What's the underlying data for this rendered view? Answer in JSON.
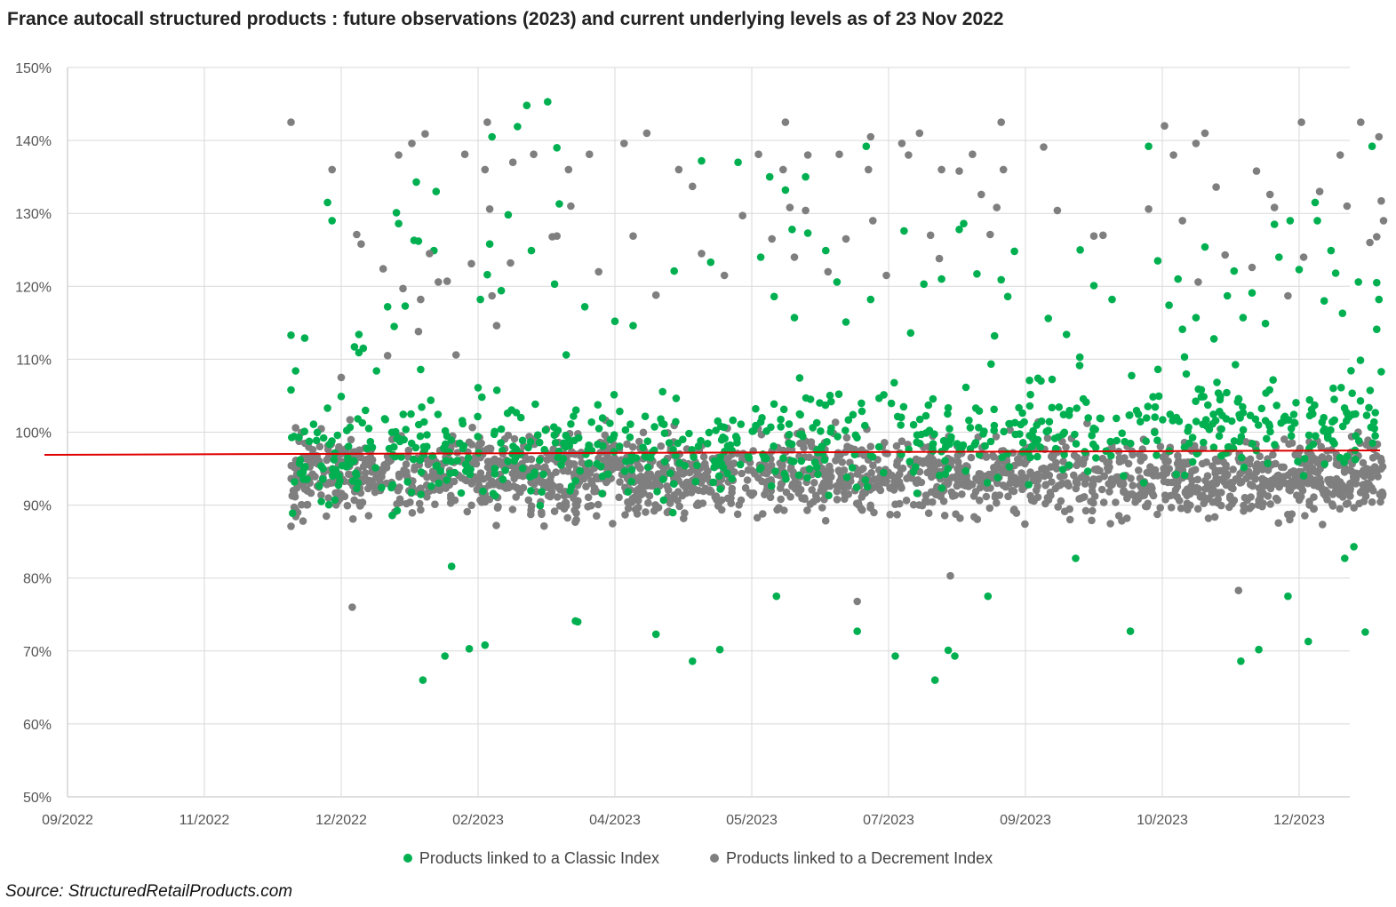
{
  "title": "France autocall structured products : future observations (2023) and current underlying levels as of 23 Nov 2022",
  "source": "Source: StructuredRetailProducts.com",
  "colors": {
    "classic": "#00B050",
    "decrement": "#7F7F7F",
    "reference_line": "#E00000",
    "grid": "#D9D9D9",
    "axis": "#BFBFBF"
  },
  "chart_data": {
    "type": "scatter",
    "x_axis": {
      "type": "date",
      "range": [
        "2022-09-01",
        "2023-12-31"
      ],
      "tick_labels": [
        "09/2022",
        "11/2022",
        "12/2022",
        "02/2023",
        "04/2023",
        "05/2023",
        "07/2023",
        "09/2023",
        "10/2023",
        "12/2023"
      ]
    },
    "y_axis": {
      "range": [
        50,
        150
      ],
      "unit": "%",
      "tick_labels": [
        "50%",
        "60%",
        "70%",
        "80%",
        "90%",
        "100%",
        "110%",
        "120%",
        "130%",
        "140%",
        "150%"
      ]
    },
    "grid": true,
    "legend_position": "bottom",
    "reference_line": {
      "y_start": 96.9,
      "y_end": 97.5
    },
    "series": [
      {
        "name": "Products linked to a Classic Index",
        "color": "#00B050",
        "points": [
          [
            "2022-11-20",
            113.3
          ],
          [
            "2022-11-21",
            108.4
          ],
          [
            "2022-11-23",
            112.9
          ],
          [
            "2022-11-20",
            105.8
          ],
          [
            "2022-11-22",
            96.2
          ],
          [
            "2022-11-28",
            131.5
          ],
          [
            "2022-11-29",
            129.0
          ],
          [
            "2022-12-01",
            104.9
          ],
          [
            "2022-11-28",
            103.3
          ],
          [
            "2022-11-27",
            95.0
          ],
          [
            "2022-12-07",
            111.7
          ],
          [
            "2022-12-09",
            113.4
          ],
          [
            "2022-12-09",
            110.9
          ],
          [
            "2022-12-11",
            111.5
          ],
          [
            "2022-12-12",
            103.0
          ],
          [
            "2022-12-17",
            108.4
          ],
          [
            "2022-12-22",
            117.2
          ],
          [
            "2022-12-26",
            130.1
          ],
          [
            "2022-12-27",
            128.6
          ],
          [
            "2022-12-25",
            114.5
          ],
          [
            "2022-12-30",
            117.3
          ],
          [
            "2023-01-03",
            126.3
          ],
          [
            "2023-01-05",
            126.2
          ],
          [
            "2023-01-04",
            134.3
          ],
          [
            "2023-01-13",
            133.0
          ],
          [
            "2023-01-12",
            124.9
          ],
          [
            "2023-01-06",
            108.6
          ],
          [
            "2023-01-07",
            66.0
          ],
          [
            "2023-01-17",
            69.3
          ],
          [
            "2023-01-20",
            81.6
          ],
          [
            "2023-01-28",
            70.3
          ],
          [
            "2023-02-01",
            106.1
          ],
          [
            "2023-02-02",
            118.2
          ],
          [
            "2023-02-05",
            121.6
          ],
          [
            "2023-02-04",
            70.8
          ],
          [
            "2023-02-06",
            125.8
          ],
          [
            "2023-02-07",
            140.5
          ],
          [
            "2023-02-11",
            119.4
          ],
          [
            "2023-02-14",
            129.8
          ],
          [
            "2023-02-18",
            141.9
          ],
          [
            "2023-02-22",
            144.8
          ],
          [
            "2023-02-24",
            124.9
          ],
          [
            "2023-03-03",
            145.3
          ],
          [
            "2023-03-07",
            139.0
          ],
          [
            "2023-03-06",
            120.3
          ],
          [
            "2023-03-08",
            131.3
          ],
          [
            "2023-03-11",
            110.6
          ],
          [
            "2023-03-15",
            74.1
          ],
          [
            "2023-03-16",
            74.0
          ],
          [
            "2023-03-19",
            117.2
          ],
          [
            "2023-04-01",
            115.2
          ],
          [
            "2023-04-05",
            114.6
          ],
          [
            "2023-04-10",
            72.3
          ],
          [
            "2023-04-14",
            122.1
          ],
          [
            "2023-04-18",
            68.6
          ],
          [
            "2023-04-20",
            137.2
          ],
          [
            "2023-04-24",
            70.2
          ],
          [
            "2023-04-22",
            123.3
          ],
          [
            "2023-04-28",
            137.0
          ],
          [
            "2023-05-05",
            124.0
          ],
          [
            "2023-05-09",
            135.0
          ],
          [
            "2023-05-11",
            118.6
          ],
          [
            "2023-05-12",
            77.5
          ],
          [
            "2023-05-16",
            133.2
          ],
          [
            "2023-05-19",
            127.8
          ],
          [
            "2023-05-20",
            115.7
          ],
          [
            "2023-05-25",
            135.0
          ],
          [
            "2023-05-26",
            127.3
          ],
          [
            "2023-06-03",
            124.9
          ],
          [
            "2023-06-08",
            120.6
          ],
          [
            "2023-06-12",
            115.1
          ],
          [
            "2023-06-17",
            72.7
          ],
          [
            "2023-06-21",
            139.2
          ],
          [
            "2023-06-23",
            118.2
          ],
          [
            "2023-07-04",
            69.3
          ],
          [
            "2023-07-08",
            127.6
          ],
          [
            "2023-07-11",
            113.6
          ],
          [
            "2023-07-17",
            120.3
          ],
          [
            "2023-07-22",
            66.0
          ],
          [
            "2023-07-25",
            121.0
          ],
          [
            "2023-07-28",
            70.1
          ],
          [
            "2023-07-31",
            69.3
          ],
          [
            "2023-08-02",
            127.8
          ],
          [
            "2023-08-04",
            128.6
          ],
          [
            "2023-08-10",
            121.7
          ],
          [
            "2023-08-15",
            77.5
          ],
          [
            "2023-08-18",
            113.2
          ],
          [
            "2023-08-21",
            120.9
          ],
          [
            "2023-08-24",
            118.6
          ],
          [
            "2023-08-27",
            124.8
          ],
          [
            "2023-09-06",
            115.6
          ],
          [
            "2023-09-10",
            113.4
          ],
          [
            "2023-09-12",
            82.7
          ],
          [
            "2023-09-13",
            125.0
          ],
          [
            "2023-09-16",
            120.1
          ],
          [
            "2023-09-20",
            118.2
          ],
          [
            "2023-09-24",
            72.7
          ],
          [
            "2023-09-28",
            139.2
          ],
          [
            "2023-09-30",
            123.5
          ],
          [
            "2023-10-04",
            117.4
          ],
          [
            "2023-10-08",
            121.0
          ],
          [
            "2023-10-10",
            114.1
          ],
          [
            "2023-10-16",
            115.7
          ],
          [
            "2023-10-20",
            125.4
          ],
          [
            "2023-10-24",
            112.8
          ],
          [
            "2023-10-30",
            118.7
          ],
          [
            "2023-11-02",
            122.1
          ],
          [
            "2023-11-06",
            115.7
          ],
          [
            "2023-11-05",
            68.6
          ],
          [
            "2023-11-10",
            119.1
          ],
          [
            "2023-11-13",
            70.2
          ],
          [
            "2023-11-16",
            114.9
          ],
          [
            "2023-11-20",
            128.5
          ],
          [
            "2023-11-22",
            124.0
          ],
          [
            "2023-11-26",
            77.5
          ],
          [
            "2023-11-27",
            129.0
          ],
          [
            "2023-12-01",
            122.3
          ],
          [
            "2023-12-05",
            71.3
          ],
          [
            "2023-12-08",
            131.5
          ],
          [
            "2023-12-09",
            129.0
          ],
          [
            "2023-12-12",
            118.0
          ],
          [
            "2023-12-15",
            124.9
          ],
          [
            "2023-12-17",
            121.8
          ],
          [
            "2023-12-20",
            116.3
          ],
          [
            "2023-12-21",
            82.7
          ],
          [
            "2023-12-25",
            84.3
          ],
          [
            "2023-12-27",
            120.6
          ],
          [
            "2023-12-30",
            72.6
          ],
          [
            "2024-01-02",
            139.2
          ],
          [
            "2024-01-04",
            120.5
          ],
          [
            "2024-01-05",
            118.2
          ],
          [
            "2024-01-04",
            114.1
          ],
          [
            "2024-01-06",
            108.3
          ],
          [
            "2024-01-03",
            100.5
          ]
        ],
        "note": "plus a dense band of green points between roughly 85% and 115% across the observation dates"
      },
      {
        "name": "Products linked to a Decrement Index",
        "color": "#7F7F7F",
        "points": [
          [
            "2022-11-20",
            142.5
          ],
          [
            "2022-11-21",
            100.6
          ],
          [
            "2022-11-23",
            92.2
          ],
          [
            "2022-11-20",
            87.1
          ],
          [
            "2022-11-29",
            136.0
          ],
          [
            "2022-12-01",
            107.5
          ],
          [
            "2022-12-06",
            76.0
          ],
          [
            "2022-12-08",
            127.1
          ],
          [
            "2022-12-10",
            125.8
          ],
          [
            "2022-12-05",
            101.7
          ],
          [
            "2022-12-20",
            122.4
          ],
          [
            "2022-12-22",
            110.5
          ],
          [
            "2022-12-27",
            138.0
          ],
          [
            "2022-12-29",
            119.7
          ],
          [
            "2023-01-02",
            139.6
          ],
          [
            "2023-01-08",
            140.9
          ],
          [
            "2023-01-05",
            113.8
          ],
          [
            "2023-01-06",
            118.2
          ],
          [
            "2023-01-10",
            124.5
          ],
          [
            "2023-01-14",
            120.6
          ],
          [
            "2023-01-18",
            120.7
          ],
          [
            "2023-01-22",
            110.6
          ],
          [
            "2023-01-26",
            138.1
          ],
          [
            "2023-01-29",
            123.1
          ],
          [
            "2023-02-04",
            136.0
          ],
          [
            "2023-02-05",
            142.5
          ],
          [
            "2023-02-06",
            130.6
          ],
          [
            "2023-02-07",
            118.7
          ],
          [
            "2023-02-09",
            114.6
          ],
          [
            "2023-02-16",
            137.0
          ],
          [
            "2023-02-15",
            123.2
          ],
          [
            "2023-02-25",
            138.1
          ],
          [
            "2023-03-05",
            126.8
          ],
          [
            "2023-03-07",
            126.9
          ],
          [
            "2023-03-12",
            136.0
          ],
          [
            "2023-03-13",
            131.0
          ],
          [
            "2023-03-21",
            138.1
          ],
          [
            "2023-03-25",
            122.0
          ],
          [
            "2023-04-03",
            139.6
          ],
          [
            "2023-04-08",
            141.0
          ],
          [
            "2023-04-05",
            126.9
          ],
          [
            "2023-04-10",
            118.8
          ],
          [
            "2023-04-15",
            136.0
          ],
          [
            "2023-04-18",
            133.7
          ],
          [
            "2023-04-20",
            124.5
          ],
          [
            "2023-04-25",
            121.5
          ],
          [
            "2023-04-29",
            129.7
          ],
          [
            "2023-05-04",
            138.1
          ],
          [
            "2023-05-10",
            126.5
          ],
          [
            "2023-05-15",
            136.0
          ],
          [
            "2023-05-16",
            142.5
          ],
          [
            "2023-05-18",
            130.8
          ],
          [
            "2023-05-20",
            124.0
          ],
          [
            "2023-05-25",
            130.4
          ],
          [
            "2023-05-26",
            138.0
          ],
          [
            "2023-06-04",
            122.0
          ],
          [
            "2023-06-09",
            138.1
          ],
          [
            "2023-06-12",
            126.5
          ],
          [
            "2023-06-17",
            76.8
          ],
          [
            "2023-06-23",
            140.5
          ],
          [
            "2023-06-22",
            136.0
          ],
          [
            "2023-06-24",
            129.0
          ],
          [
            "2023-06-30",
            121.5
          ],
          [
            "2023-07-07",
            139.6
          ],
          [
            "2023-07-10",
            138.0
          ],
          [
            "2023-07-15",
            141.0
          ],
          [
            "2023-07-20",
            127.0
          ],
          [
            "2023-07-24",
            123.8
          ],
          [
            "2023-07-25",
            136.0
          ],
          [
            "2023-07-29",
            80.3
          ],
          [
            "2023-08-02",
            135.8
          ],
          [
            "2023-08-08",
            138.1
          ],
          [
            "2023-08-12",
            132.6
          ],
          [
            "2023-08-16",
            127.1
          ],
          [
            "2023-08-19",
            130.8
          ],
          [
            "2023-08-21",
            142.5
          ],
          [
            "2023-08-22",
            136.0
          ],
          [
            "2023-09-05",
            139.1
          ],
          [
            "2023-09-08",
            130.4
          ],
          [
            "2023-09-16",
            126.9
          ],
          [
            "2023-09-18",
            127.0
          ],
          [
            "2023-09-28",
            130.6
          ],
          [
            "2023-10-02",
            142.0
          ],
          [
            "2023-10-06",
            138.0
          ],
          [
            "2023-10-10",
            129.0
          ],
          [
            "2023-10-16",
            139.6
          ],
          [
            "2023-10-17",
            120.6
          ],
          [
            "2023-10-20",
            141.0
          ],
          [
            "2023-10-25",
            133.6
          ],
          [
            "2023-10-29",
            124.3
          ],
          [
            "2023-11-04",
            78.3
          ],
          [
            "2023-11-10",
            122.6
          ],
          [
            "2023-11-12",
            135.8
          ],
          [
            "2023-11-20",
            130.8
          ],
          [
            "2023-11-18",
            132.6
          ],
          [
            "2023-11-26",
            118.7
          ],
          [
            "2023-12-02",
            142.5
          ],
          [
            "2023-12-03",
            124.0
          ],
          [
            "2023-12-10",
            133.0
          ],
          [
            "2023-12-19",
            138.0
          ],
          [
            "2023-12-22",
            131.0
          ],
          [
            "2023-12-28",
            142.5
          ],
          [
            "2024-01-01",
            126.0
          ],
          [
            "2024-01-05",
            140.5
          ],
          [
            "2024-01-06",
            131.7
          ],
          [
            "2024-01-07",
            129.0
          ],
          [
            "2024-01-04",
            126.8
          ]
        ],
        "note": "plus a dense band of grey points between roughly 84% and 115% across the observation dates"
      }
    ]
  }
}
